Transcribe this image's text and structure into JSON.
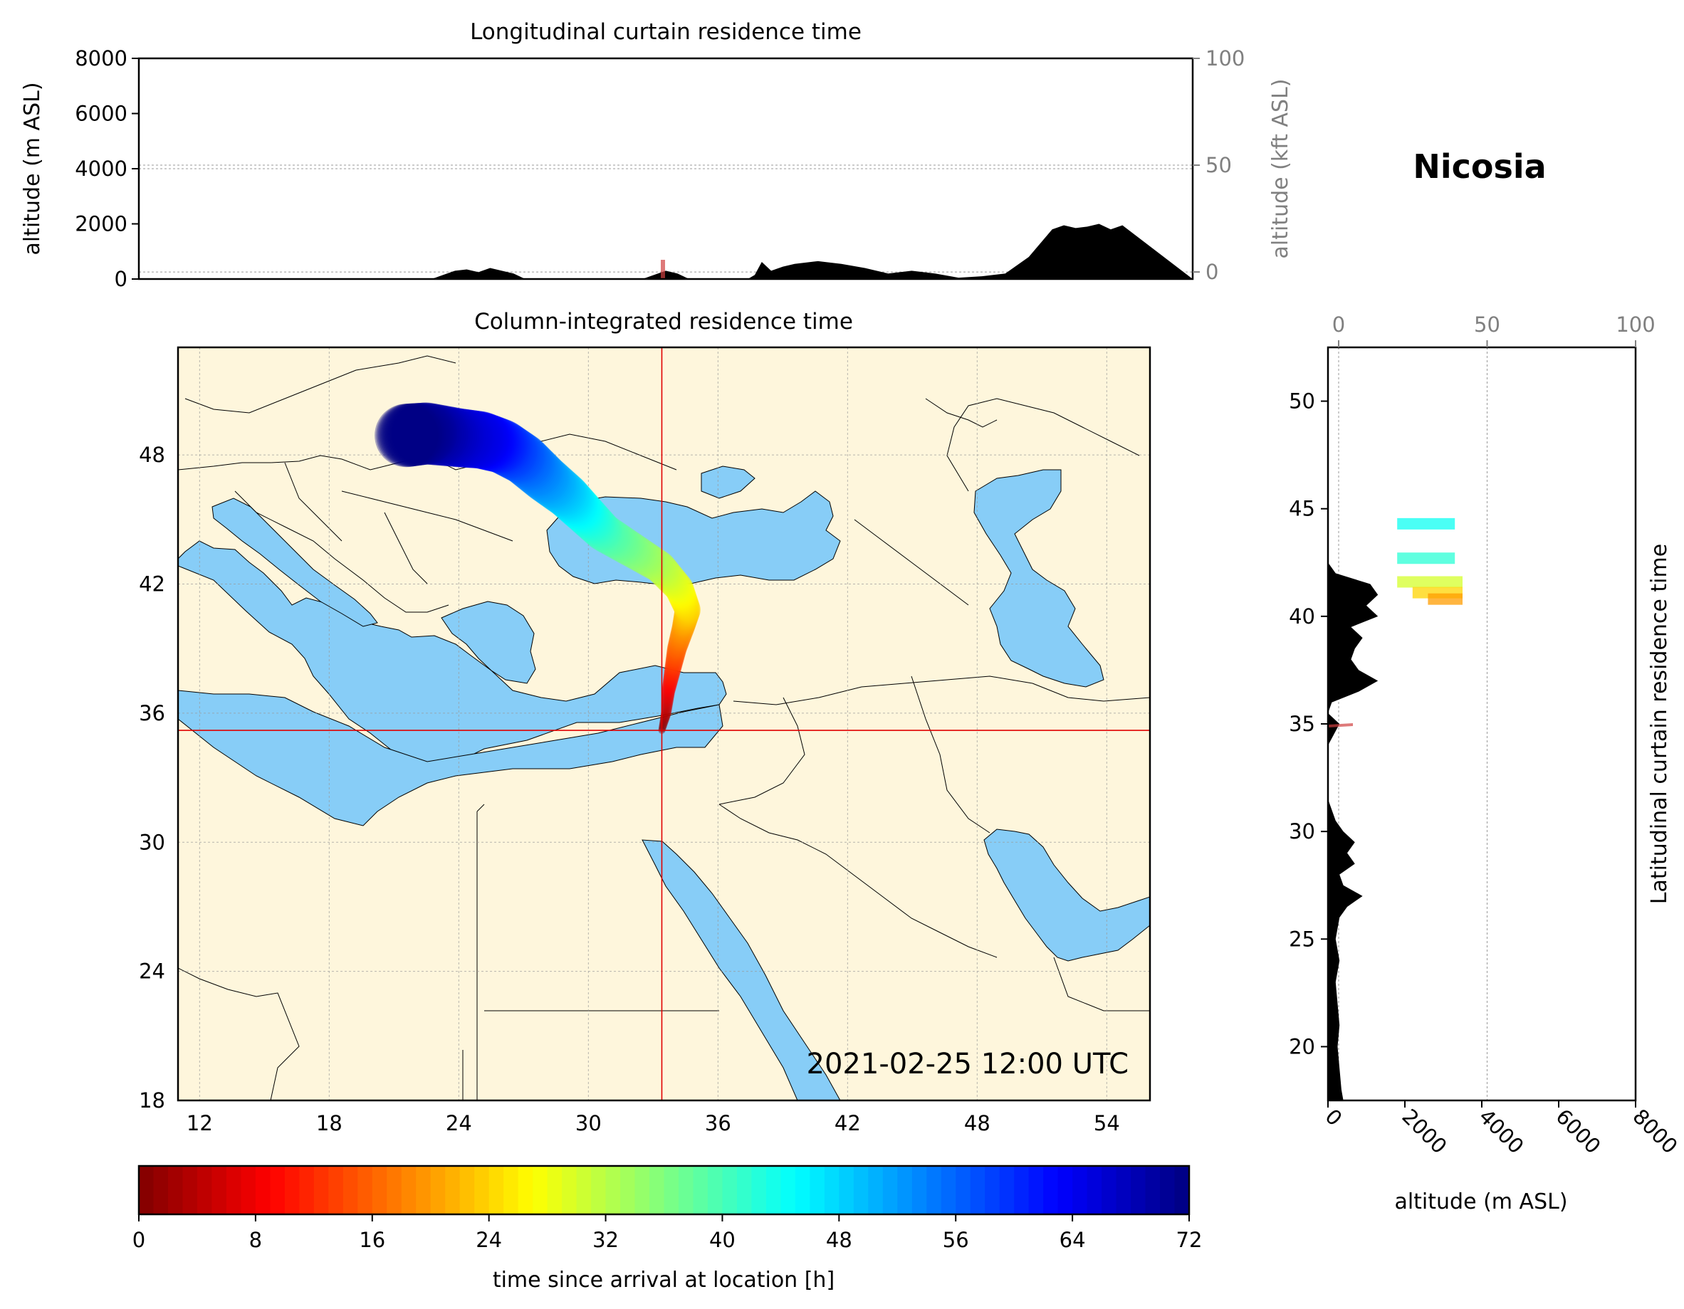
{
  "header": {
    "location": "Nicosia"
  },
  "top_panel": {
    "title": "Longitudinal curtain residence time",
    "ylabel_left": "altitude (m ASL)",
    "ylabel_right": "altitude (kft ASL)",
    "y_ticks_left": [
      "0",
      "2000",
      "4000",
      "6000",
      "8000"
    ],
    "y_ticks_right": [
      "0",
      "50",
      "100"
    ]
  },
  "map_panel": {
    "title": "Column-integrated residence time",
    "timestamp": "2021-02-25 12:00 UTC",
    "x_ticks": [
      "12",
      "18",
      "24",
      "30",
      "36",
      "42",
      "48",
      "54"
    ],
    "y_ticks": [
      "18",
      "24",
      "30",
      "36",
      "42",
      "48"
    ],
    "colors": {
      "land": "#fef6dc",
      "sea": "#87cdf7",
      "crosshair": "#e00000"
    }
  },
  "right_panel": {
    "title": "Latitudinal curtain residence time",
    "xlabel": "altitude (m ASL)",
    "x_ticks_bottom": [
      "0",
      "2000",
      "4000",
      "6000",
      "8000"
    ],
    "x_ticks_top": [
      "0",
      "50",
      "100"
    ],
    "y_ticks": [
      "20",
      "25",
      "30",
      "35",
      "40",
      "45",
      "50"
    ]
  },
  "colorbar": {
    "label": "time since arrival at location [h]",
    "ticks": [
      "0",
      "8",
      "16",
      "24",
      "32",
      "40",
      "48",
      "56",
      "64",
      "72"
    ],
    "colormap": "jet_r"
  },
  "chart_data": [
    {
      "type": "area",
      "name": "longitudinal_curtain",
      "title": "Longitudinal curtain residence time",
      "xlabel": "",
      "ylabel": "altitude (m ASL)",
      "secondary_ylabel": "altitude (kft ASL)",
      "xlim": [
        10,
        55
      ],
      "ylim": [
        0,
        8000
      ],
      "secondary_ylim": [
        -3.3,
        100
      ],
      "grid": true,
      "terrain": {
        "x": [
          10,
          22.5,
          23.5,
          24,
          24.5,
          25,
          25.5,
          26,
          26.5,
          27,
          28,
          29,
          31.5,
          32.5,
          33,
          33.5,
          34.5,
          36,
          36.3,
          36.6,
          37,
          37.5,
          38,
          39,
          40,
          41,
          42,
          43,
          44,
          45,
          46,
          47,
          47.5,
          48,
          48.5,
          49,
          49.5,
          50,
          50.5,
          51,
          51.5,
          52,
          55
        ],
        "y": [
          0,
          0,
          300,
          350,
          250,
          400,
          300,
          200,
          0,
          0,
          0,
          0,
          0,
          300,
          200,
          0,
          0,
          0,
          150,
          620,
          300,
          450,
          550,
          650,
          550,
          400,
          200,
          300,
          200,
          50,
          100,
          200,
          500,
          800,
          1300,
          1800,
          1950,
          1850,
          1900,
          2000,
          1800,
          1950,
          0
        ]
      }
    },
    {
      "type": "area",
      "name": "latitudinal_curtain",
      "title": "Latitudinal curtain residence time",
      "xlabel": "altitude (m ASL)",
      "ylabel": "",
      "xlim": [
        0,
        8000
      ],
      "ylim": [
        17.5,
        52.5
      ],
      "secondary_xlim": [
        0,
        100
      ],
      "grid": true,
      "terrain": {
        "lat": [
          17.5,
          18,
          19,
          20,
          21,
          22,
          23,
          24,
          25,
          26,
          26.5,
          27,
          27.5,
          28,
          28.5,
          29,
          29.5,
          30,
          30.5,
          31,
          31.5,
          32,
          33,
          34,
          35,
          35.5,
          36,
          36.5,
          37,
          37.5,
          38,
          38.5,
          39,
          39.5,
          40,
          40.5,
          41,
          41.5,
          42,
          42.5,
          45,
          52.5
        ],
        "alt": [
          400,
          350,
          300,
          250,
          300,
          250,
          200,
          300,
          200,
          300,
          500,
          900,
          400,
          300,
          700,
          500,
          700,
          400,
          200,
          100,
          0,
          0,
          0,
          0,
          300,
          0,
          100,
          800,
          1300,
          800,
          600,
          700,
          900,
          600,
          1300,
          1000,
          1300,
          1100,
          200,
          0,
          0,
          0
        ]
      },
      "plume": [
        {
          "lat": 42.7,
          "alt_from": 1800,
          "alt_to": 3300,
          "hours": 42
        },
        {
          "lat": 44.3,
          "alt_from": 1800,
          "alt_to": 3300,
          "hours": 44
        },
        {
          "lat": 41.6,
          "alt_from": 1800,
          "alt_to": 3500,
          "hours": 30
        },
        {
          "lat": 41.1,
          "alt_from": 2200,
          "alt_to": 3500,
          "hours": 24
        },
        {
          "lat": 40.8,
          "alt_from": 2600,
          "alt_to": 3500,
          "hours": 20
        }
      ]
    },
    {
      "type": "scatter",
      "name": "column_integrated_trajectory",
      "title": "Column-integrated residence time",
      "xlim": [
        11,
        56
      ],
      "ylim": [
        18,
        53
      ],
      "grid": true,
      "release_point": {
        "lon": 33.4,
        "lat": 35.2
      },
      "path": {
        "lon": [
          33.4,
          33.6,
          33.7,
          33.9,
          34.1,
          34.4,
          34.6,
          34.2,
          33.3,
          32.0,
          30.7,
          29.8,
          29.0,
          28.0,
          27.0,
          26.0,
          25.0,
          24.0,
          22.5,
          21.5
        ],
        "lat": [
          35.2,
          36.0,
          37.0,
          38.0,
          39.0,
          40.0,
          40.8,
          41.8,
          42.8,
          43.6,
          44.4,
          45.3,
          46.1,
          46.9,
          47.8,
          48.4,
          48.7,
          48.8,
          49.0,
          48.9
        ],
        "hours": [
          0,
          4,
          8,
          12,
          16,
          20,
          24,
          28,
          32,
          36,
          40,
          44,
          48,
          52,
          56,
          60,
          64,
          66,
          70,
          72
        ]
      }
    }
  ]
}
